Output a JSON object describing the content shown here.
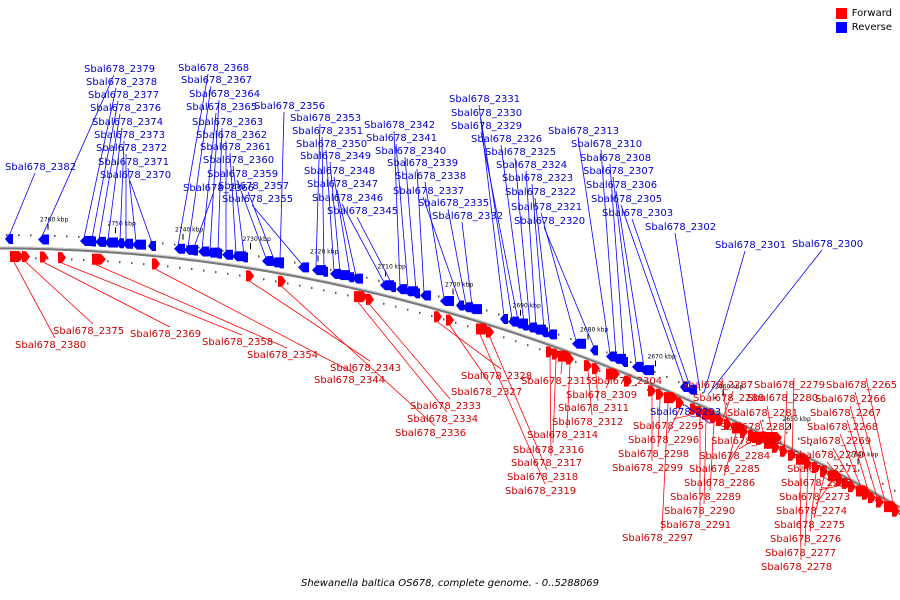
{
  "legend": [
    {
      "label": "Forward",
      "color": "#ff0000"
    },
    {
      "label": "Reverse",
      "color": "#0000ff"
    }
  ],
  "caption": "Shewanella baltica OS678, complete genome. - 0..5288069",
  "colors": {
    "forward": "#ff0000",
    "reverse": "#0000ff",
    "forward_label": "#cc0000",
    "reverse_label": "#0000cc",
    "backbone": "#777777"
  },
  "kbp_ticks": [
    {
      "label": "2760 kbp",
      "kbp": 2760
    },
    {
      "label": "2750 kbp",
      "kbp": 2750
    },
    {
      "label": "2740 kbp",
      "kbp": 2740
    },
    {
      "label": "2730 kbp",
      "kbp": 2730
    },
    {
      "label": "2720 kbp",
      "kbp": 2720
    },
    {
      "label": "2710 kbp",
      "kbp": 2710
    },
    {
      "label": "2700 kbp",
      "kbp": 2700
    },
    {
      "label": "2690 kbp",
      "kbp": 2690
    },
    {
      "label": "2680 kbp",
      "kbp": 2680
    },
    {
      "label": "2670 kbp",
      "kbp": 2670
    },
    {
      "label": "2660 kbp",
      "kbp": 2660
    },
    {
      "label": "2650 kbp",
      "kbp": 2650
    },
    {
      "label": "2640 kbp",
      "kbp": 2640
    }
  ],
  "genes_reverse": [
    "Sbal678_2382",
    "Sbal678_2379",
    "Sbal678_2378",
    "Sbal678_2377",
    "Sbal678_2376",
    "Sbal678_2374",
    "Sbal678_2373",
    "Sbal678_2372",
    "Sbal678_2371",
    "Sbal678_2370",
    "Sbal678_2368",
    "Sbal678_2367",
    "Sbal678_2366",
    "Sbal678_2365",
    "Sbal678_2364",
    "Sbal678_2363",
    "Sbal678_2362",
    "Sbal678_2361",
    "Sbal678_2360",
    "Sbal678_2359",
    "Sbal678_2357",
    "Sbal678_2356",
    "Sbal678_2355",
    "Sbal678_2353",
    "Sbal678_2351",
    "Sbal678_2350",
    "Sbal678_2349",
    "Sbal678_2348",
    "Sbal678_2347",
    "Sbal678_2346",
    "Sbal678_2345",
    "Sbal678_2342",
    "Sbal678_2341",
    "Sbal678_2340",
    "Sbal678_2339",
    "Sbal678_2338",
    "Sbal678_2337",
    "Sbal678_2335",
    "Sbal678_2332",
    "Sbal678_2331",
    "Sbal678_2330",
    "Sbal678_2329",
    "Sbal678_2326",
    "Sbal678_2325",
    "Sbal678_2324",
    "Sbal678_2323",
    "Sbal678_2322",
    "Sbal678_2321",
    "Sbal678_2320",
    "Sbal678_2313",
    "Sbal678_2310",
    "Sbal678_2308",
    "Sbal678_2307",
    "Sbal678_2306",
    "Sbal678_2305",
    "Sbal678_2303",
    "Sbal678_2302",
    "Sbal678_2301",
    "Sbal678_2300",
    "Sbal678_2293"
  ],
  "genes_forward": [
    "Sbal678_2380",
    "Sbal678_2375",
    "Sbal678_2369",
    "Sbal678_2358",
    "Sbal678_2354",
    "Sbal678_2344",
    "Sbal678_2343",
    "Sbal678_2336",
    "Sbal678_2334",
    "Sbal678_2333",
    "Sbal678_2328",
    "Sbal678_2327",
    "Sbal678_2319",
    "Sbal678_2318",
    "Sbal678_2317",
    "Sbal678_2316",
    "Sbal678_2315",
    "Sbal678_2314",
    "Sbal678_2312",
    "Sbal678_2311",
    "Sbal678_2309",
    "Sbal678_2304",
    "Sbal678_2299",
    "Sbal678_2298",
    "Sbal678_2297",
    "Sbal678_2296",
    "Sbal678_2295",
    "Sbal678_2291",
    "Sbal678_2290",
    "Sbal678_2289",
    "Sbal678_2288",
    "Sbal678_2287",
    "Sbal678_2286",
    "Sbal678_2285",
    "Sbal678_2284",
    "Sbal678_2283",
    "Sbal678_2282",
    "Sbal678_2281",
    "Sbal678_2280",
    "Sbal678_2279",
    "Sbal678_2278",
    "Sbal678_2277",
    "Sbal678_2276",
    "Sbal678_2275",
    "Sbal678_2274",
    "Sbal678_2273",
    "Sbal678_2272",
    "Sbal678_2271",
    "Sbal678_2270",
    "Sbal678_2269",
    "Sbal678_2268",
    "Sbal678_2267",
    "Sbal678_2266",
    "Sbal678_2265"
  ]
}
